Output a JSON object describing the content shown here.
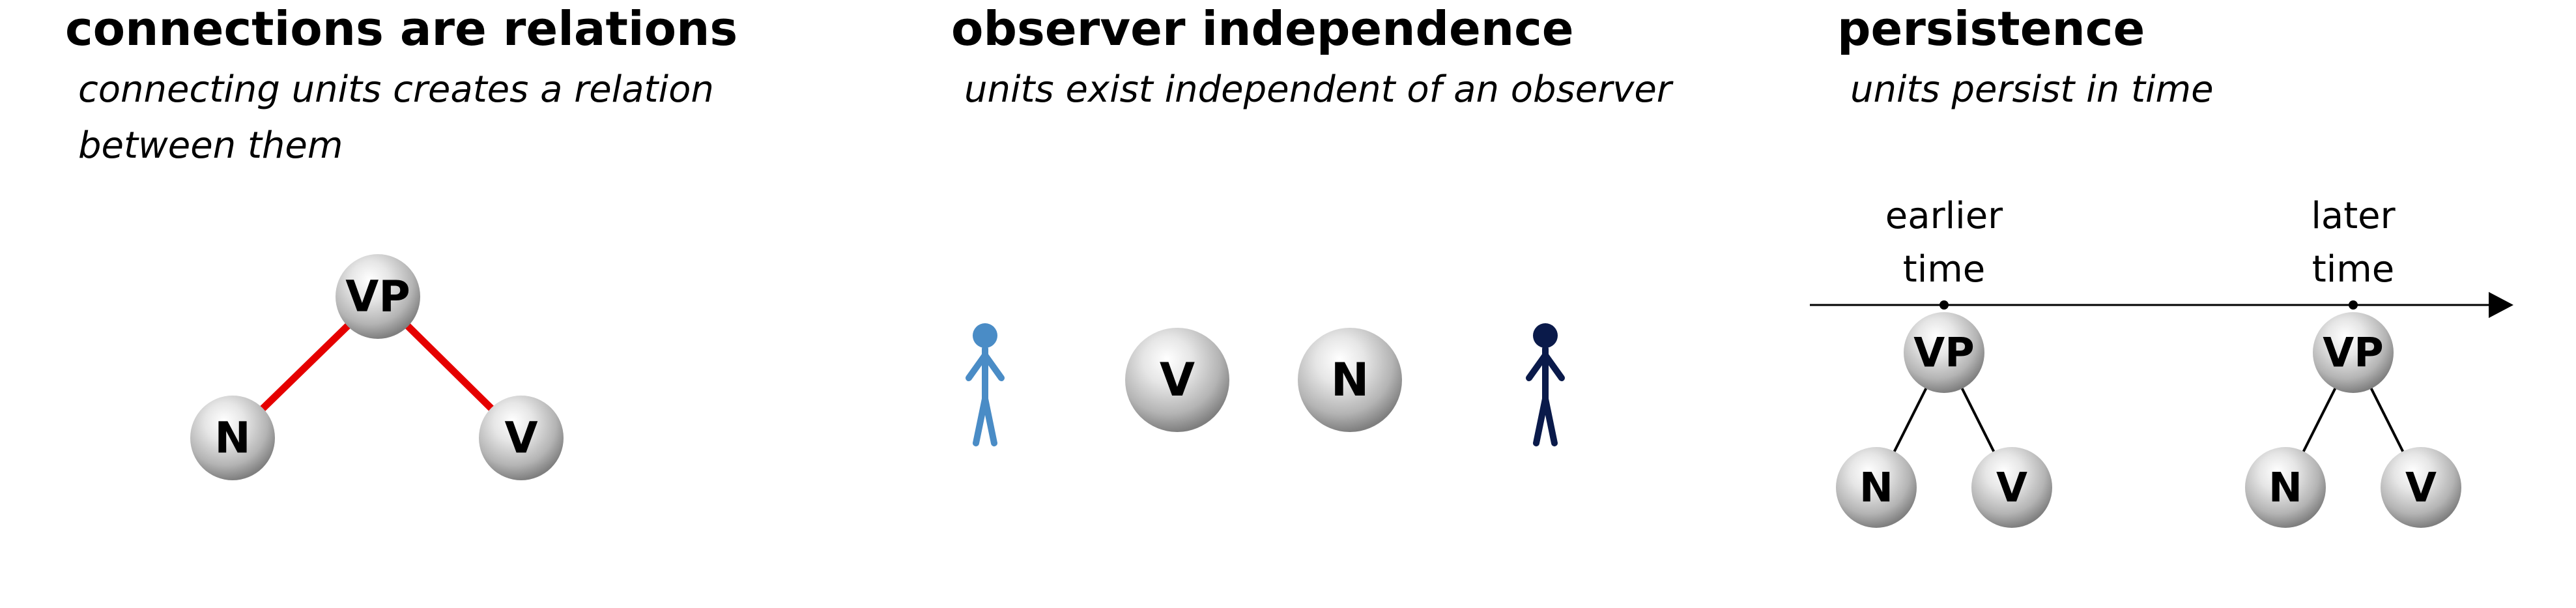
{
  "panels": {
    "relations": {
      "title": "connections are relations",
      "subtitle_line1": "connecting units creates a relation",
      "subtitle_line2": "between them",
      "nodes": {
        "top": "VP",
        "left": "N",
        "right": "V"
      }
    },
    "observer": {
      "title": "observer independence",
      "subtitle": "units exist independent of an observer",
      "nodes": {
        "first": "V",
        "second": "N"
      }
    },
    "persistence": {
      "title": "persistence",
      "subtitle": "units persist in time",
      "earlier_line1": "earlier",
      "earlier_line2": "time",
      "later_line1": "later",
      "later_line2": "time",
      "earlier_tree": {
        "top": "VP",
        "left": "N",
        "right": "V"
      },
      "later_tree": {
        "top": "VP",
        "left": "N",
        "right": "V"
      }
    }
  },
  "colors": {
    "relation_edge": "#e50000",
    "observer_light": "#4a8cc6",
    "observer_dark": "#0a1a4a",
    "tree_edge": "#000000",
    "sphere_light": "#ffffff",
    "sphere_dark": "#8c8c8c"
  }
}
